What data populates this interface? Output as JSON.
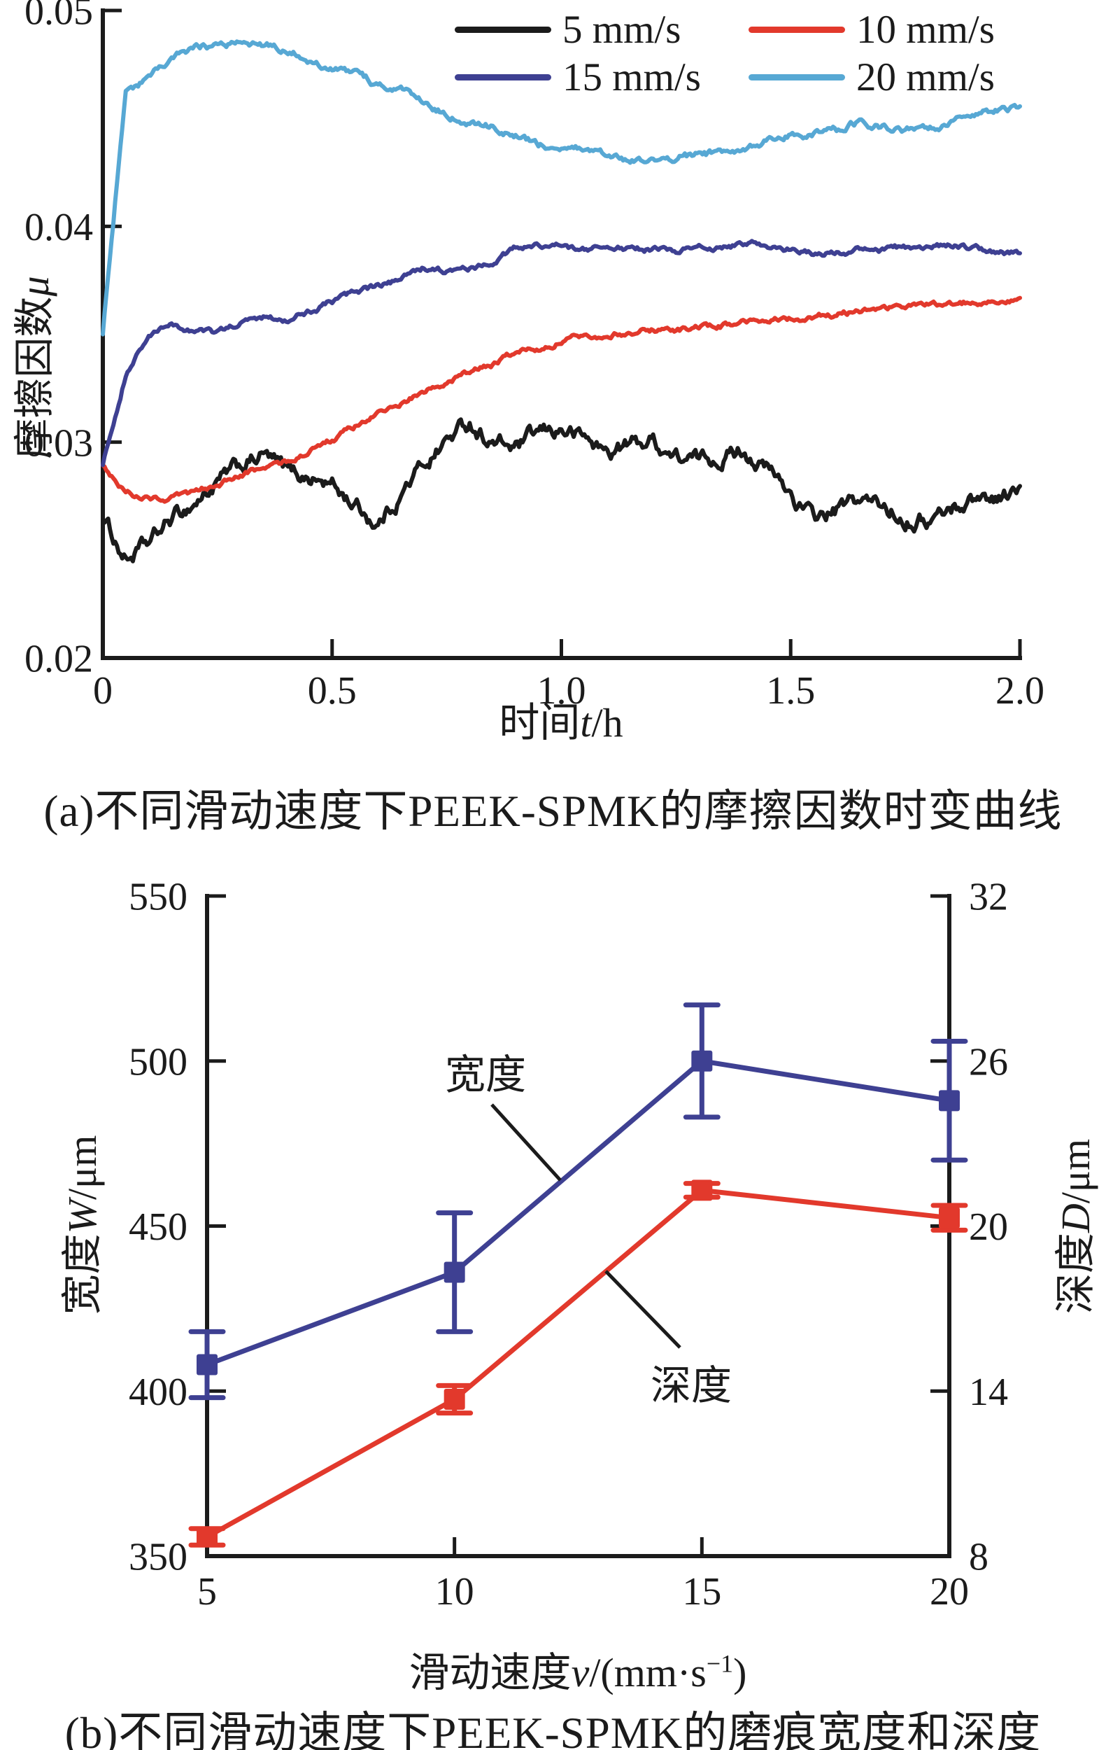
{
  "figure": {
    "caption_a": "(a)不同滑动速度下PEEK-SPMK的摩擦因数时变曲线",
    "caption_b": "(b)不同滑动速度下PEEK-SPMK的磨痕宽度和深度"
  },
  "colors": {
    "ink": "#1b1b1b",
    "black": "#1b1b1b",
    "red": "#e2392c",
    "indigo": "#3e4092",
    "skyblue": "#57a8d4"
  },
  "labels": {
    "a_ylabel": {
      "pre": "摩擦因数",
      "it": "μ"
    },
    "a_xlabel": {
      "pre": "时间",
      "it": "t",
      "post": "/h"
    },
    "b_ylabel_left": {
      "pre": "宽度",
      "it": "W",
      "post": "/μm"
    },
    "b_ylabel_right": {
      "pre": "深度",
      "it": "D",
      "post": "/μm"
    },
    "b_xlabel": {
      "pre": "滑动速度",
      "it": "v",
      "post": "/(mm·s",
      "sup": "−1",
      "post2": ")"
    }
  },
  "chart_data": [
    {
      "type": "line",
      "title": "",
      "xlabel": "时间 t/h",
      "ylabel": "摩擦因数 μ",
      "xlim": [
        0,
        2.0
      ],
      "ylim": [
        0.02,
        0.05
      ],
      "xticks": [
        "0",
        "0.5",
        "1.0",
        "1.5",
        "2.0"
      ],
      "yticks": [
        "0.02",
        "0.03",
        "0.04",
        "0.05"
      ],
      "grid": false,
      "legend_position": "top-right, 2 columns inside plot",
      "x": [
        0,
        0.05,
        0.1,
        0.15,
        0.2,
        0.25,
        0.3,
        0.35,
        0.4,
        0.45,
        0.5,
        0.55,
        0.6,
        0.65,
        0.7,
        0.75,
        0.8,
        0.85,
        0.9,
        0.95,
        1.0,
        1.05,
        1.1,
        1.15,
        1.2,
        1.25,
        1.3,
        1.35,
        1.4,
        1.45,
        1.5,
        1.55,
        1.6,
        1.65,
        1.7,
        1.75,
        1.8,
        1.85,
        1.9,
        1.95,
        2.0
      ],
      "series": [
        {
          "name": "5 mm/s",
          "color": "#1b1b1b",
          "noise": 0.00035,
          "y": [
            0.0265,
            0.0246,
            0.0252,
            0.0264,
            0.0272,
            0.0281,
            0.0288,
            0.0294,
            0.0286,
            0.0284,
            0.028,
            0.0271,
            0.0262,
            0.0276,
            0.029,
            0.0301,
            0.0309,
            0.03,
            0.0297,
            0.0303,
            0.0306,
            0.0302,
            0.0295,
            0.0299,
            0.0301,
            0.0293,
            0.0291,
            0.0294,
            0.0297,
            0.0287,
            0.0276,
            0.0264,
            0.0268,
            0.0273,
            0.027,
            0.0266,
            0.0264,
            0.0269,
            0.0274,
            0.0275,
            0.0278
          ]
        },
        {
          "name": "10 mm/s",
          "color": "#e2392c",
          "noise": 0.00012,
          "y": [
            0.029,
            0.0277,
            0.0274,
            0.0274,
            0.0276,
            0.0281,
            0.0284,
            0.0288,
            0.0291,
            0.0296,
            0.0301,
            0.0307,
            0.0313,
            0.0318,
            0.0323,
            0.0328,
            0.0332,
            0.0336,
            0.0341,
            0.0344,
            0.0347,
            0.0349,
            0.035,
            0.0351,
            0.0352,
            0.0352,
            0.0353,
            0.0354,
            0.0355,
            0.0356,
            0.0357,
            0.0358,
            0.0359,
            0.0361,
            0.0362,
            0.0363,
            0.0364,
            0.0364,
            0.0365,
            0.0366,
            0.0367
          ]
        },
        {
          "name": "15 mm/s",
          "color": "#3e4092",
          "noise": 0.00012,
          "y": [
            0.029,
            0.0332,
            0.0349,
            0.0354,
            0.0352,
            0.035,
            0.0355,
            0.0358,
            0.0357,
            0.0361,
            0.0365,
            0.0369,
            0.0372,
            0.0375,
            0.0381,
            0.0379,
            0.038,
            0.0384,
            0.039,
            0.0391,
            0.0391,
            0.0389,
            0.039,
            0.039,
            0.0389,
            0.0389,
            0.039,
            0.039,
            0.0392,
            0.0391,
            0.0389,
            0.0387,
            0.0388,
            0.0389,
            0.0389,
            0.039,
            0.039,
            0.0391,
            0.039,
            0.0388,
            0.0388
          ]
        },
        {
          "name": "20 mm/s",
          "color": "#57a8d4",
          "noise": 0.00015,
          "y": [
            0.035,
            0.0462,
            0.0468,
            0.0477,
            0.0482,
            0.0484,
            0.0486,
            0.0484,
            0.0483,
            0.0478,
            0.0473,
            0.047,
            0.0466,
            0.0463,
            0.0457,
            0.0452,
            0.0448,
            0.0446,
            0.0442,
            0.0438,
            0.0436,
            0.0435,
            0.0433,
            0.0431,
            0.043,
            0.0432,
            0.0433,
            0.0434,
            0.0437,
            0.044,
            0.0443,
            0.0443,
            0.0444,
            0.0449,
            0.0446,
            0.0444,
            0.0445,
            0.0448,
            0.0452,
            0.0454,
            0.0456
          ]
        }
      ]
    },
    {
      "type": "line-errorbar",
      "title": "",
      "xlabel": "滑动速度 v/(mm·s⁻¹)",
      "ylabel_left": "宽度 W/μm",
      "ylabel_right": "深度 D/μm",
      "x": [
        5,
        10,
        15,
        20
      ],
      "xticks": [
        "5",
        "10",
        "15",
        "20"
      ],
      "ylim_left": [
        350,
        550
      ],
      "yticks_left": [
        "350",
        "400",
        "450",
        "500",
        "550"
      ],
      "ylim_right": [
        8,
        32
      ],
      "yticks_right": [
        "8",
        "14",
        "20",
        "26",
        "32"
      ],
      "grid": false,
      "series": [
        {
          "name": "宽度",
          "axis": "left",
          "color": "#3e4092",
          "marker": "square",
          "values": [
            408,
            436,
            500,
            488
          ],
          "errors": [
            10,
            18,
            17,
            18
          ]
        },
        {
          "name": "深度",
          "axis": "right",
          "color": "#e2392c",
          "marker": "square",
          "values": [
            8.7,
            13.7,
            21.3,
            20.3
          ],
          "errors": [
            0.3,
            0.5,
            0.25,
            0.45
          ]
        }
      ],
      "annotations": [
        {
          "text": "宽度",
          "points_to": "width series"
        },
        {
          "text": "深度",
          "points_to": "depth series"
        }
      ]
    }
  ]
}
